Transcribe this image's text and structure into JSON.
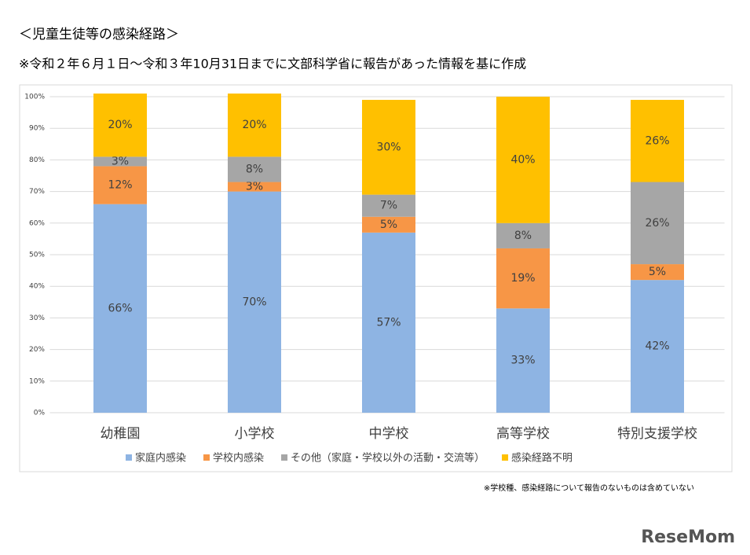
{
  "chart_data": {
    "type": "stacked_bar",
    "title": "＜児童生徒等の感染経路＞",
    "subtitle": "※令和２年６月１日～令和３年10月31日までに文部科学省に報告があった情報を基に作成",
    "note": "※学校種、感染経路について報告のないものは含めていない",
    "logo": "ReseMom",
    "categories": [
      "幼稚園",
      "小学校",
      "中学校",
      "高等学校",
      "特別支援学校"
    ],
    "series": [
      {
        "name": "家庭内感染",
        "color": "#8eb4e3",
        "values": [
          66,
          70,
          57,
          33,
          42
        ],
        "value_labels": [
          "66%",
          "70%",
          "57%",
          "33%",
          "42%"
        ]
      },
      {
        "name": "学校内感染",
        "color": "#f79646",
        "values": [
          12,
          3,
          5,
          19,
          5
        ],
        "value_labels": [
          "12%",
          "3%",
          "5%",
          "19%",
          "5%"
        ]
      },
      {
        "name": "その他（家庭・学校以外の活動・交流等）",
        "color": "#a6a6a6",
        "values": [
          3,
          8,
          7,
          8,
          26
        ],
        "value_labels": [
          "3%",
          "8%",
          "7%",
          "8%",
          "26%"
        ]
      },
      {
        "name": "感染経路不明",
        "color": "#ffc000",
        "values": [
          20,
          20,
          30,
          40,
          26
        ],
        "value_labels": [
          "20%",
          "20%",
          "30%",
          "40%",
          "26%"
        ]
      }
    ],
    "ylim": [
      0,
      100
    ],
    "yticks": [
      {
        "value": 0,
        "label": "0%"
      },
      {
        "value": 10,
        "label": "10%"
      },
      {
        "value": 20,
        "label": "20%"
      },
      {
        "value": 30,
        "label": "30%"
      },
      {
        "value": 40,
        "label": "40%"
      },
      {
        "value": 50,
        "label": "50%"
      },
      {
        "value": 60,
        "label": "60%"
      },
      {
        "value": 70,
        "label": "70%"
      },
      {
        "value": 80,
        "label": "80%"
      },
      {
        "value": 90,
        "label": "90%"
      },
      {
        "value": 100,
        "label": "100%"
      }
    ],
    "legend": "bottom"
  }
}
